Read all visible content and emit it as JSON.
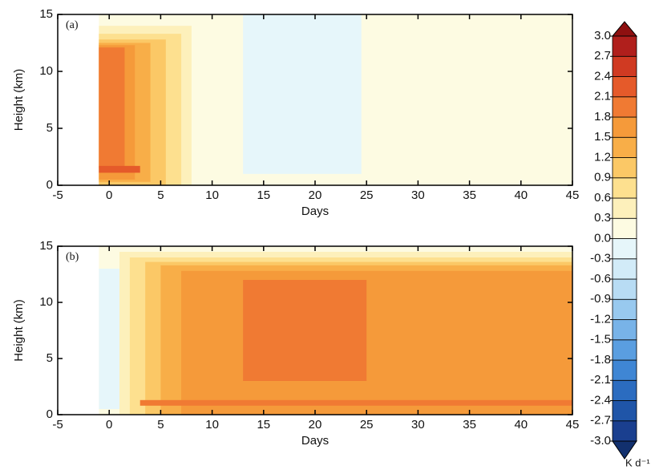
{
  "chart_data": [
    {
      "type": "contour",
      "label": "(a)",
      "xlabel": "Days",
      "ylabel": "Height (km)",
      "xlim": [
        -5,
        45
      ],
      "ylim": [
        0,
        15
      ],
      "xticks": [
        -5,
        0,
        5,
        10,
        15,
        20,
        25,
        30,
        35,
        40,
        45
      ],
      "yticks": [
        0,
        5,
        10,
        15
      ],
      "regions": [
        {
          "value": 0.15,
          "x": [
            -1,
            45
          ],
          "y": [
            0,
            15
          ]
        },
        {
          "value": -0.15,
          "x": [
            13,
            24.5
          ],
          "y": [
            1,
            15
          ]
        },
        {
          "value": 0.45,
          "x": [
            -1,
            8
          ],
          "y": [
            0,
            14
          ]
        },
        {
          "value": 0.75,
          "x": [
            -1,
            7
          ],
          "y": [
            0,
            13.3
          ]
        },
        {
          "value": 1.05,
          "x": [
            -1,
            5.5
          ],
          "y": [
            0,
            12.8
          ]
        },
        {
          "value": 1.35,
          "x": [
            -1,
            4
          ],
          "y": [
            0.3,
            12.5
          ]
        },
        {
          "value": 1.65,
          "x": [
            -1,
            2.5
          ],
          "y": [
            0.5,
            12.3
          ]
        },
        {
          "value": 1.95,
          "x": [
            -1,
            1.5
          ],
          "y": [
            1.5,
            12.1
          ]
        },
        {
          "value": 2.25,
          "x": [
            -1,
            3
          ],
          "y": [
            1.1,
            1.7
          ]
        }
      ]
    },
    {
      "type": "contour",
      "label": "(b)",
      "xlabel": "Days",
      "ylabel": "Height (km)",
      "xlim": [
        -5,
        45
      ],
      "ylim": [
        0,
        15
      ],
      "xticks": [
        -5,
        0,
        5,
        10,
        15,
        20,
        25,
        30,
        35,
        40,
        45
      ],
      "yticks": [
        0,
        5,
        10,
        15
      ],
      "regions": [
        {
          "value": 0.15,
          "x": [
            -1,
            45
          ],
          "y": [
            0,
            15
          ]
        },
        {
          "value": -0.15,
          "x": [
            -1,
            1
          ],
          "y": [
            0.5,
            13
          ]
        },
        {
          "value": 0.45,
          "x": [
            1,
            45
          ],
          "y": [
            0,
            14.5
          ]
        },
        {
          "value": 0.75,
          "x": [
            2,
            45
          ],
          "y": [
            0,
            14
          ]
        },
        {
          "value": 1.05,
          "x": [
            3.5,
            45
          ],
          "y": [
            0,
            13.6
          ]
        },
        {
          "value": 1.35,
          "x": [
            5,
            45
          ],
          "y": [
            0,
            13.3
          ]
        },
        {
          "value": 1.65,
          "x": [
            7,
            45
          ],
          "y": [
            0,
            12.8
          ]
        },
        {
          "value": 1.95,
          "x": [
            13,
            25
          ],
          "y": [
            3,
            12
          ]
        },
        {
          "value": 1.95,
          "x": [
            3,
            45
          ],
          "y": [
            0.8,
            1.3
          ]
        }
      ]
    },
    {
      "type": "colorbar",
      "unit": "K d⁻¹",
      "ticks": [
        {
          "value": 3,
          "label": "3.0"
        },
        {
          "value": 2.7,
          "label": "2.7"
        },
        {
          "value": 2.4,
          "label": "2.4"
        },
        {
          "value": 2.1,
          "label": "2.1"
        },
        {
          "value": 1.8,
          "label": "1.8"
        },
        {
          "value": 1.5,
          "label": "1.5"
        },
        {
          "value": 1.2,
          "label": "1.2"
        },
        {
          "value": 0.9,
          "label": "0.9"
        },
        {
          "value": 0.6,
          "label": "0.6"
        },
        {
          "value": 0.3,
          "label": "0.3"
        },
        {
          "value": 0,
          "label": "0.0"
        },
        {
          "value": -0.3,
          "label": "-0.3"
        },
        {
          "value": -0.6,
          "label": "-0.6"
        },
        {
          "value": -0.9,
          "label": "-0.9"
        },
        {
          "value": -1.2,
          "label": "-1.2"
        },
        {
          "value": -1.5,
          "label": "-1.5"
        },
        {
          "value": -1.8,
          "label": "-1.8"
        },
        {
          "value": -2.1,
          "label": "-2.1"
        },
        {
          "value": -2.4,
          "label": "-2.4"
        },
        {
          "value": -2.7,
          "label": "-2.7"
        },
        {
          "value": -3,
          "label": "-3.0"
        }
      ],
      "colors": [
        "#12306e",
        "#1a3f8f",
        "#1f55a8",
        "#2b6cc0",
        "#3f86d4",
        "#5a9ee0",
        "#78b3e8",
        "#98c9ef",
        "#b8dcf4",
        "#d2ebf8",
        "#e6f6fa",
        "#fdfbe2",
        "#fdf0bb",
        "#fde08f",
        "#fbc866",
        "#f8ae48",
        "#f59a3a",
        "#f07a33",
        "#e55a2a",
        "#d03a22",
        "#b01f1c",
        "#8e1010"
      ]
    }
  ]
}
